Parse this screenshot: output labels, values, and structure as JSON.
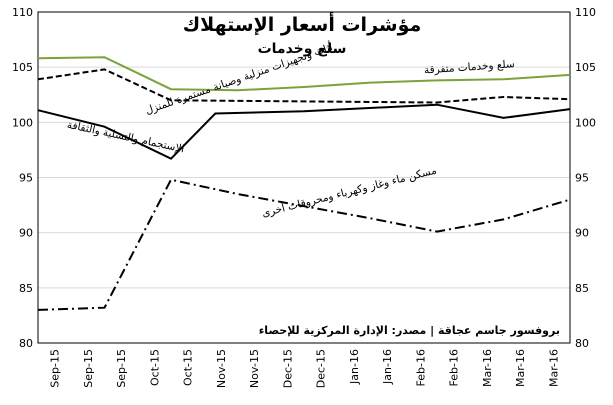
{
  "chart_data": {
    "type": "line",
    "title": "مؤشرات أسعار الإستهلاك",
    "subtitle": "سلع وخدمات",
    "source": "بروفسور جاسم عجاقة | مصدر: الإدارة المركزية للإحصاء",
    "x": [
      "Sep-15",
      "Sep-15",
      "Sep-15",
      "Oct-15",
      "Oct-15",
      "Nov-15",
      "Nov-15",
      "Dec-15",
      "Dec-15",
      "Jan-16",
      "Jan-16",
      "Feb-16",
      "Feb-16",
      "Mar-16",
      "Mar-16",
      "Mar-16"
    ],
    "ylim": [
      80,
      110
    ],
    "yticks": [
      80,
      85,
      90,
      95,
      100,
      105,
      110
    ],
    "grid": true,
    "series": [
      {
        "name": "سلع وخدمات متفرقة",
        "color": "#7aa33a",
        "dash": "solid",
        "points": [
          [
            0,
            105.8
          ],
          [
            3,
            105.9
          ],
          [
            6,
            103.0
          ],
          [
            9,
            102.9
          ],
          [
            12,
            103.2
          ],
          [
            15,
            103.6
          ],
          [
            18,
            103.8
          ],
          [
            21,
            103.9
          ],
          [
            24,
            104.3
          ]
        ]
      },
      {
        "name": "أثاث وتجهيزات منزلية وصيانة مستمرة للمنزل",
        "color": "#000000",
        "dash": "dashed",
        "points": [
          [
            0,
            103.9
          ],
          [
            3,
            104.8
          ],
          [
            6,
            102.0
          ],
          [
            12,
            101.9
          ],
          [
            18,
            101.8
          ],
          [
            21,
            102.3
          ],
          [
            24,
            102.1
          ]
        ]
      },
      {
        "name": "الإستجمام والتسلية والثقافة",
        "color": "#000000",
        "dash": "solid",
        "points": [
          [
            0,
            101.1
          ],
          [
            3,
            99.6
          ],
          [
            6,
            96.7
          ],
          [
            8,
            100.8
          ],
          [
            12,
            101.0
          ],
          [
            18,
            101.6
          ],
          [
            21,
            100.4
          ],
          [
            24,
            101.2
          ]
        ]
      },
      {
        "name": "مسكن ماء وغاز وكهرباء ومحروقات أخرى",
        "color": "#000000",
        "dash": "dashdot",
        "points": [
          [
            0,
            83.0
          ],
          [
            3,
            83.2
          ],
          [
            6,
            94.8
          ],
          [
            9,
            93.5
          ],
          [
            12,
            92.4
          ],
          [
            15,
            91.3
          ],
          [
            18,
            90.1
          ],
          [
            21,
            91.2
          ],
          [
            24,
            93.0
          ]
        ]
      }
    ]
  }
}
